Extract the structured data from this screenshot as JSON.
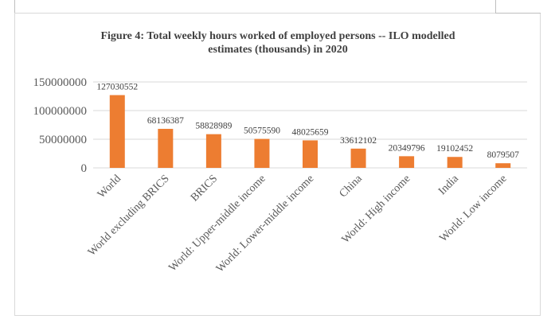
{
  "chart_data": {
    "type": "bar",
    "title_lines": [
      "Figure 4: Total weekly hours worked of employed persons -- ILO modelled",
      "estimates (thousands) in 2020"
    ],
    "categories": [
      "World",
      "World excluding BRICS",
      "BRICS",
      "World: Upper-middle income",
      "World: Lower-middle income",
      "China",
      "World: High income",
      "India",
      "World: Low income"
    ],
    "values": [
      127030552,
      68136387,
      58828989,
      50575590,
      48025659,
      33612102,
      20349796,
      19102452,
      8079507
    ],
    "value_labels": [
      "127030552",
      "68136387",
      "58828989",
      "50575590",
      "48025659",
      "33612102",
      "20349796",
      "19102452",
      "8079507"
    ],
    "y_ticks": [
      0,
      50000000,
      100000000,
      150000000
    ],
    "y_tick_labels": [
      "0",
      "50000000",
      "100000000",
      "150000000"
    ],
    "ylim": [
      0,
      150000000
    ],
    "grid": true,
    "bar_color": "#ED7D31",
    "grid_color": "#d9d9d9"
  }
}
